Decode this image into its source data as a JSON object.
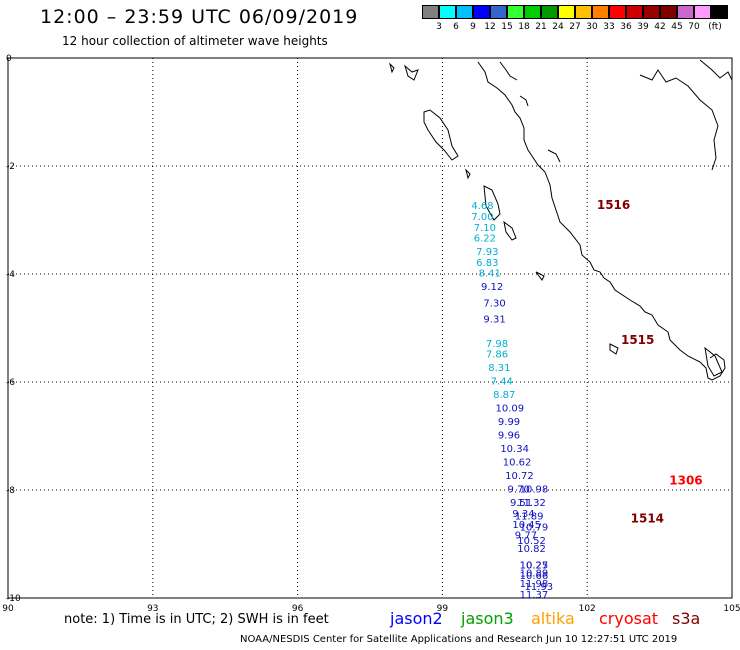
{
  "header": {
    "title": "12:00 – 23:59 UTC 06/09/2019",
    "subtitle": "12 hour collection of altimeter wave heights"
  },
  "colorbar": {
    "colors": [
      "#808080",
      "#00ffff",
      "#00bfff",
      "#0000ff",
      "#3366cc",
      "#33ff33",
      "#00cc00",
      "#009900",
      "#ffff00",
      "#ffc000",
      "#ff8000",
      "#ff0000",
      "#cc0000",
      "#990000",
      "#800000",
      "#cc66cc",
      "#ff99ff",
      "#000000"
    ],
    "labels": [
      "3",
      "6",
      "9",
      "12",
      "15",
      "18",
      "21",
      "24",
      "27",
      "30",
      "33",
      "36",
      "39",
      "42",
      "45",
      "70",
      "(ft)"
    ]
  },
  "map": {
    "lon_range": [
      90,
      105
    ],
    "lat_range": [
      -10,
      0
    ],
    "x_ticks": [
      "90",
      "93",
      "96",
      "99",
      "102",
      "105"
    ],
    "y_ticks": [
      "0",
      "-2",
      "-4",
      "-6",
      "-8",
      "-10"
    ],
    "grid": true,
    "passes": [
      {
        "name": "1516",
        "color": "#800000",
        "lon": 102.2,
        "lat": -2.8
      },
      {
        "name": "1515",
        "color": "#800000",
        "lon": 102.7,
        "lat": -5.3
      },
      {
        "name": "1306",
        "color": "#ff0000",
        "lon": 103.7,
        "lat": -7.9
      },
      {
        "name": "1514",
        "color": "#800000",
        "lon": 102.9,
        "lat": -8.6
      }
    ],
    "track_s3a_light": {
      "color": "#00b0d0",
      "points": [
        {
          "lon": 99.6,
          "lat": -2.8,
          "v": "4.68"
        },
        {
          "lon": 99.6,
          "lat": -3.0,
          "v": "7.00"
        },
        {
          "lon": 99.65,
          "lat": -3.2,
          "v": "7.10"
        },
        {
          "lon": 99.65,
          "lat": -3.4,
          "v": "6.22"
        },
        {
          "lon": 99.7,
          "lat": -3.65,
          "v": "7.93"
        },
        {
          "lon": 99.7,
          "lat": -3.85,
          "v": "6.83"
        },
        {
          "lon": 99.75,
          "lat": -4.05,
          "v": "8.41"
        },
        {
          "lon": 99.9,
          "lat": -5.35,
          "v": "7.98"
        },
        {
          "lon": 99.9,
          "lat": -5.55,
          "v": "7.86"
        },
        {
          "lon": 99.95,
          "lat": -5.8,
          "v": "8.31"
        },
        {
          "lon": 100.0,
          "lat": -6.05,
          "v": "7.44"
        },
        {
          "lon": 100.05,
          "lat": -6.3,
          "v": "8.87"
        }
      ]
    },
    "track_s3a_dark": {
      "color": "#1010c0",
      "points": [
        {
          "lon": 99.8,
          "lat": -4.3,
          "v": "9.12"
        },
        {
          "lon": 99.85,
          "lat": -4.6,
          "v": "7.30"
        },
        {
          "lon": 99.85,
          "lat": -4.9,
          "v": "9.31"
        },
        {
          "lon": 100.1,
          "lat": -6.55,
          "v": "10.09"
        },
        {
          "lon": 100.15,
          "lat": -6.8,
          "v": "9.99"
        },
        {
          "lon": 100.15,
          "lat": -7.05,
          "v": "9.96"
        },
        {
          "lon": 100.2,
          "lat": -7.3,
          "v": "10.34"
        },
        {
          "lon": 100.25,
          "lat": -7.55,
          "v": "10.62"
        },
        {
          "lon": 100.3,
          "lat": -7.8,
          "v": "10.72"
        },
        {
          "lon": 100.35,
          "lat": -8.05,
          "v": "9.70"
        },
        {
          "lon": 100.4,
          "lat": -8.3,
          "v": "9.51"
        },
        {
          "lon": 100.45,
          "lat": -8.5,
          "v": "9.34"
        },
        {
          "lon": 100.45,
          "lat": -8.7,
          "v": "10.45"
        },
        {
          "lon": 100.5,
          "lat": -8.9,
          "v": "9.77"
        },
        {
          "lon": 100.55,
          "lat": -9.15,
          "v": "10.82"
        },
        {
          "lon": 100.6,
          "lat": -9.45,
          "v": "10.27"
        },
        {
          "lon": 100.6,
          "lat": -9.6,
          "v": "10.89"
        },
        {
          "lon": 100.6,
          "lat": -9.8,
          "v": "11.98"
        },
        {
          "lon": 100.6,
          "lat": -10.0,
          "v": "11.37"
        }
      ]
    },
    "track_j3": {
      "color": "#1010c0",
      "points": [
        {
          "lon": 100.6,
          "lat": -8.05,
          "v": "10.98"
        },
        {
          "lon": 100.55,
          "lat": -8.3,
          "v": "11.32"
        },
        {
          "lon": 100.5,
          "lat": -8.55,
          "v": "11.89"
        },
        {
          "lon": 100.6,
          "lat": -8.75,
          "v": "10.79"
        },
        {
          "lon": 100.55,
          "lat": -9.0,
          "v": "10.52"
        },
        {
          "lon": 100.6,
          "lat": -9.45,
          "v": "10.25"
        },
        {
          "lon": 100.6,
          "lat": -9.65,
          "v": "10.66"
        },
        {
          "lon": 100.7,
          "lat": -9.85,
          "v": "11.93"
        }
      ]
    }
  },
  "note": "note:  1) Time is in UTC;  2) SWH is in feet",
  "legend": [
    {
      "name": "jason2",
      "color": "#0000ff"
    },
    {
      "name": "jason3",
      "color": "#00a000"
    },
    {
      "name": "altika",
      "color": "#ffa000"
    },
    {
      "name": "cryosat",
      "color": "#ff0000"
    },
    {
      "name": "s3a",
      "color": "#800000"
    }
  ],
  "footer": "NOAA/NESDIS Center for Satellite Applications and Research    Jun 10 12:27:51 UTC 2019"
}
